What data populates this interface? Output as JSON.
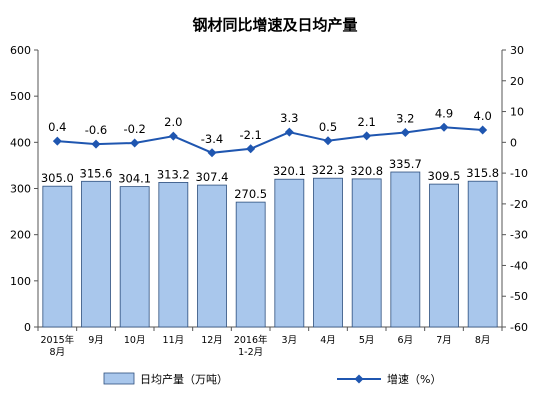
{
  "chart_data": {
    "type": "bar+line",
    "title": "钢材同比增速及日均产量",
    "categories": [
      "2015年\n8月",
      "9月",
      "10月",
      "11月",
      "12月",
      "2016年\n1-2月",
      "3月",
      "4月",
      "5月",
      "6月",
      "7月",
      "8月"
    ],
    "series": [
      {
        "name": "日均产量（万吨）",
        "type": "bar",
        "axis": "left",
        "values": [
          305.0,
          315.6,
          304.1,
          313.2,
          307.4,
          270.5,
          320.1,
          322.3,
          320.8,
          335.7,
          309.5,
          315.8
        ],
        "labels": [
          "305.0",
          "315.6",
          "304.1",
          "313.2",
          "307.4",
          "270.5",
          "320.1",
          "322.3",
          "320.8",
          "335.7",
          "309.5",
          "315.8"
        ]
      },
      {
        "name": "增速（%）",
        "type": "line",
        "axis": "right",
        "values": [
          0.4,
          -0.6,
          -0.2,
          2.0,
          -3.4,
          -2.1,
          3.3,
          0.5,
          2.1,
          3.2,
          4.9,
          4.0
        ],
        "labels": [
          "0.4",
          "-0.6",
          "-0.2",
          "2.0",
          "-3.4",
          "-2.1",
          "3.3",
          "0.5",
          "2.1",
          "3.2",
          "4.9",
          "4.0"
        ]
      }
    ],
    "y_left": {
      "lim": [
        0,
        600
      ],
      "ticks": [
        "0",
        "100",
        "200",
        "300",
        "400",
        "500",
        "600"
      ]
    },
    "y_right": {
      "lim": [
        -60,
        30
      ],
      "ticks": [
        "30",
        "20",
        "10",
        "0",
        "-10",
        "-20",
        "-30",
        "-40",
        "-50",
        "-60"
      ]
    },
    "legend": {
      "position": "bottom"
    },
    "grid": false,
    "colors": {
      "bar_fill": "#a9c7ec",
      "bar_stroke": "#2d4f7d",
      "line": "#1f56b0",
      "axis": "#555555",
      "text": "#000000"
    }
  }
}
